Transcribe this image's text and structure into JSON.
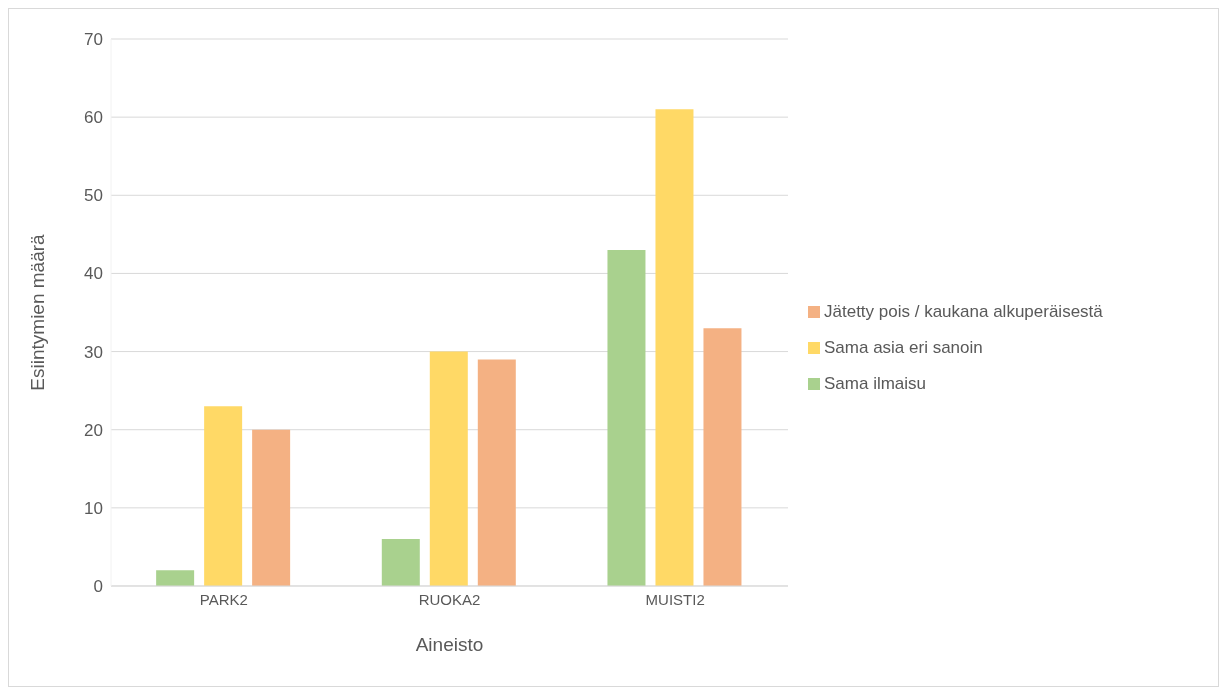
{
  "chart_data": {
    "type": "bar",
    "xlabel": "Aineisto",
    "ylabel": "Esiintymien määrä",
    "categories": [
      "PARK2",
      "RUOKA2",
      "MUISTI2"
    ],
    "series": [
      {
        "name": "Sama ilmaisu",
        "color": "#a9d18e",
        "values": [
          2,
          6,
          43
        ]
      },
      {
        "name": "Sama asia eri sanoin",
        "color": "#ffd966",
        "values": [
          23,
          30,
          61
        ]
      },
      {
        "name": "Jätetty pois / kaukana alkuperäisestä",
        "color": "#f4b183",
        "values": [
          20,
          29,
          33
        ]
      }
    ],
    "ylim": [
      0,
      70
    ],
    "yticks": [
      0,
      10,
      20,
      30,
      40,
      50,
      60,
      70
    ],
    "grid": "y",
    "legend": "right"
  }
}
